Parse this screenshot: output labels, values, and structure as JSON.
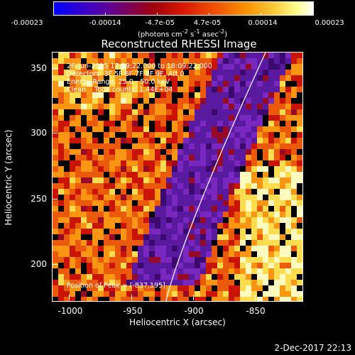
{
  "colorbar": {
    "ticks": [
      "-0.00023",
      "-0.00014",
      "-4.7e-05",
      "4.7e-05",
      "0.00014",
      "0.00023"
    ],
    "units_html": "(photons cm<sup>-2</sup> s<sup>-1</sup> asec<sup>-2</sup>)"
  },
  "title": "Reconstructed RHESSI Image",
  "info": {
    "time_range": "26-Jun-2015 17:59:22.000 to 18:09:22.000",
    "detectors": "Detectors: 3F 5F 6F 7F 8F 9F, Att 0",
    "energy": "Energy Range: 25.0 - 50.0 keV",
    "method": "Clean    Total counts: 1.44E+04",
    "peak": "Position of Peak = [-837,195]"
  },
  "axes": {
    "xlabel": "Heliocentric X (arcsec)",
    "ylabel": "Heliocentric Y (arcsec)",
    "x_ticks": [
      "-1000",
      "-950",
      "-900",
      "-850"
    ],
    "y_ticks": [
      "350",
      "300",
      "250",
      "200"
    ]
  },
  "footer": {
    "date": "2-Dec-2017 22:13"
  },
  "colors": {
    "limb": "#ffffff",
    "violet": "#5a1aa0",
    "red": "#c81400",
    "orange": "#f07010",
    "yellow": "#ffe060"
  }
}
